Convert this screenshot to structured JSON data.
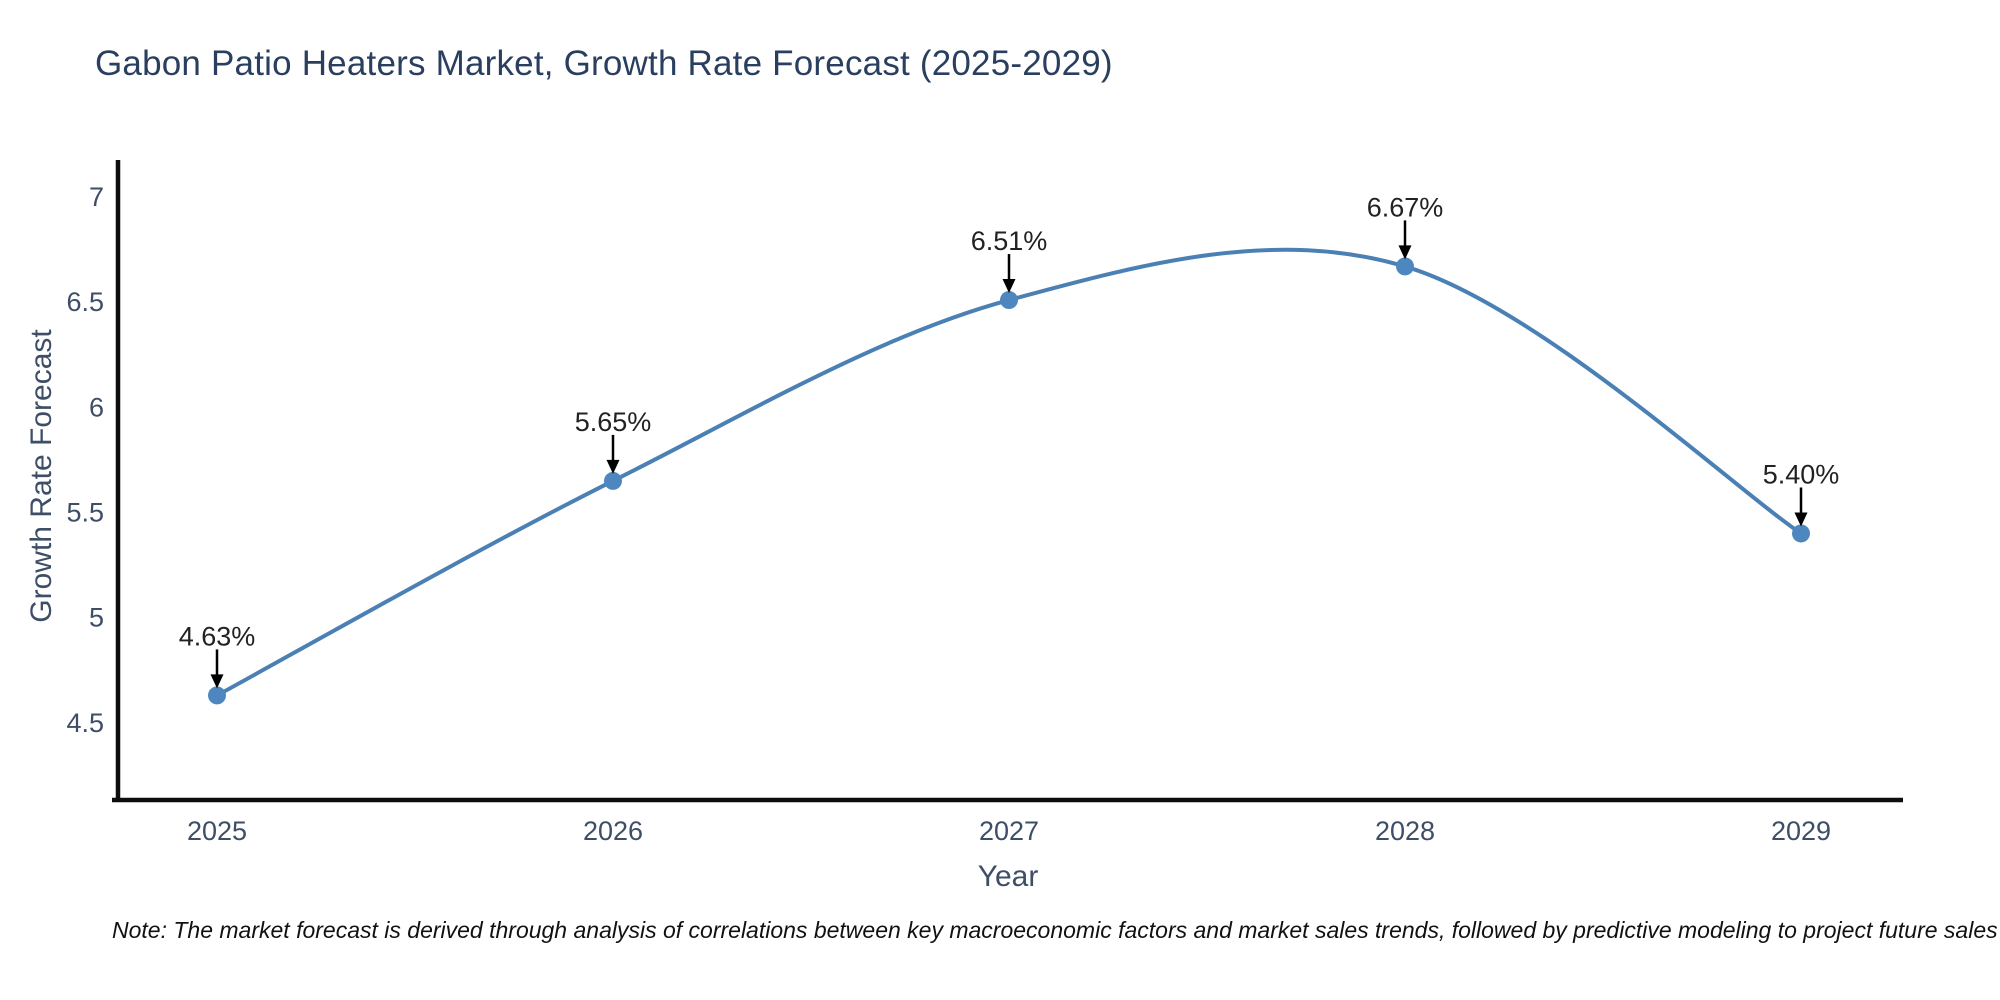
{
  "chart_data": {
    "type": "line",
    "line_shape": "spline",
    "title": "Gabon Patio Heaters Market, Growth Rate Forecast (2025-2029)",
    "xlabel": "Year",
    "ylabel": "Growth Rate Forecast",
    "categories": [
      "2025",
      "2026",
      "2027",
      "2028",
      "2029"
    ],
    "values": [
      4.63,
      5.65,
      6.51,
      6.67,
      5.4
    ],
    "point_labels": [
      "4.63%",
      "5.65%",
      "6.51%",
      "6.67%",
      "5.40%"
    ],
    "series_name": "Growth Rate Forecast",
    "yticks": [
      "7",
      "6.5",
      "6",
      "5.5",
      "5",
      "4.5"
    ],
    "ytick_values": [
      7,
      6.5,
      6,
      5.5,
      5,
      4.5
    ],
    "ylim": [
      4.13,
      7.17
    ],
    "grid": false,
    "legend_position": "none",
    "annotation_style": "value label above each point with black arrow pointing down to marker",
    "note": "Note: The market forecast is derived through analysis of correlations between key macroeconomic factors and market sales trends, followed by predictive modeling to project future sales",
    "colors": {
      "background": "#ffffff",
      "line": "#4a80b4",
      "marker": "#4e87bf",
      "axis_line": "#0d0d0d",
      "tick_text": "#3d4e66",
      "axis_title_text": "#3d4e66",
      "title_text": "#2a3f5f",
      "annotation_text": "#222222",
      "arrow": "#000000",
      "note_text": "#111111"
    }
  }
}
